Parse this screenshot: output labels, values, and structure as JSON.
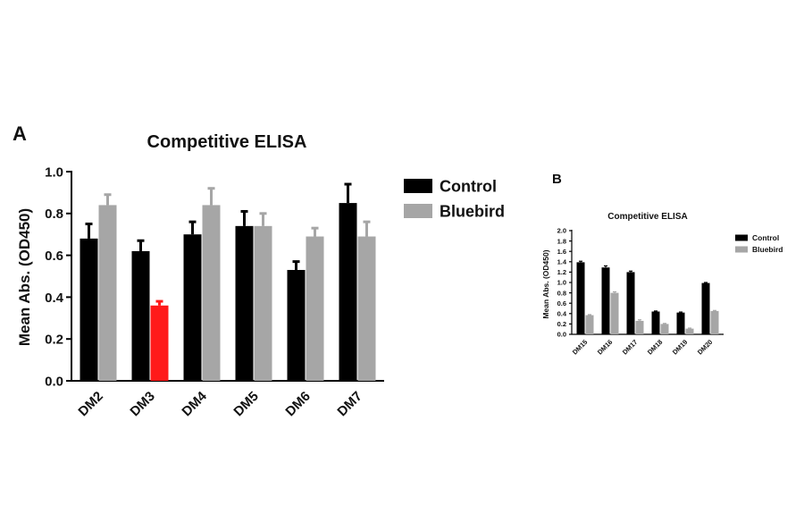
{
  "chart_data": [
    {
      "panel": "A",
      "type": "bar",
      "title": "Competitive ELISA",
      "xlabel": "",
      "ylabel": "Mean Abs. (OD450)",
      "ylim": [
        0,
        1.0
      ],
      "yticks": [
        "0.0",
        "0.2",
        "0.4",
        "0.6",
        "0.8",
        "1.0"
      ],
      "categories": [
        "DM2",
        "DM3",
        "DM4",
        "DM5",
        "DM6",
        "DM7"
      ],
      "series": [
        {
          "name": "Control",
          "color": "#000000",
          "values": [
            0.68,
            0.62,
            0.7,
            0.74,
            0.53,
            0.85
          ],
          "errors": [
            0.07,
            0.05,
            0.06,
            0.07,
            0.04,
            0.09
          ]
        },
        {
          "name": "Bluebird",
          "color": "#a6a6a6",
          "values": [
            0.84,
            0.36,
            0.84,
            0.74,
            0.69,
            0.69
          ],
          "errors": [
            0.05,
            0.02,
            0.08,
            0.06,
            0.04,
            0.07
          ],
          "highlight_index": 1,
          "highlight_color": "#ff1a1a"
        }
      ],
      "legend": "right"
    },
    {
      "panel": "B",
      "type": "bar",
      "title": "Competitive ELISA",
      "xlabel": "",
      "ylabel": "Mean Abs. (OD450)",
      "ylim": [
        0,
        2.0
      ],
      "yticks": [
        "0.0",
        "0.2",
        "0.4",
        "0.6",
        "0.8",
        "1.0",
        "1.2",
        "1.4",
        "1.6",
        "1.8",
        "2.0"
      ],
      "categories": [
        "DM15",
        "DM16",
        "DM17",
        "DM18",
        "DM19",
        "DM20"
      ],
      "series": [
        {
          "name": "Control",
          "color": "#000000",
          "values": [
            1.39,
            1.29,
            1.2,
            0.44,
            0.42,
            0.99
          ],
          "errors": [
            0.02,
            0.03,
            0.02,
            0.01,
            0.01,
            0.01
          ]
        },
        {
          "name": "Bluebird",
          "color": "#a6a6a6",
          "values": [
            0.37,
            0.8,
            0.26,
            0.2,
            0.11,
            0.45
          ],
          "errors": [
            0.01,
            0.02,
            0.02,
            0.01,
            0.01,
            0.01
          ]
        }
      ],
      "legend": "right"
    }
  ]
}
